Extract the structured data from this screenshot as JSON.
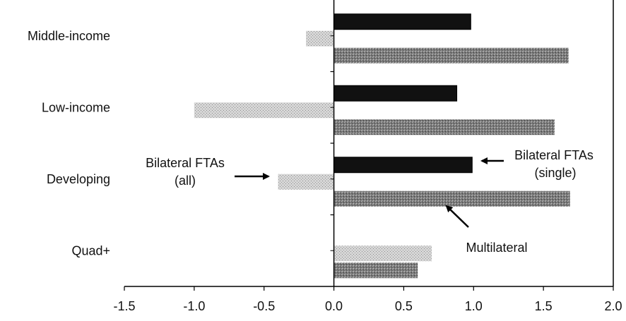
{
  "chart_data": {
    "type": "bar",
    "orientation": "horizontal",
    "categories": [
      "Middle-income",
      "Low-income",
      "Developing",
      "Quad+"
    ],
    "series": [
      {
        "values": [
          0.98,
          0.88,
          0.99,
          null
        ],
        "color": "#111111",
        "pattern": "solid"
      },
      {
        "values": [
          -0.2,
          -1.0,
          -0.4,
          0.7
        ],
        "color": "#c4c4c4",
        "pattern": "light-stipple"
      },
      {
        "values": [
          1.68,
          1.58,
          1.69,
          0.6
        ],
        "color": "#6d6d6d",
        "pattern": "dark-stipple"
      }
    ],
    "xlim": [
      -1.5,
      2.0
    ],
    "xticks": [
      "-1.5",
      "-1.0",
      "-0.5",
      "0.0",
      "0.5",
      "1.0",
      "1.5",
      "2.0"
    ],
    "xtick_values": [
      -1.5,
      -1.0,
      -0.5,
      0.0,
      0.5,
      1.0,
      1.5,
      2.0
    ],
    "grid": false,
    "legend": "none",
    "annotations": [
      {
        "lines": [
          "Bilateral FTAs",
          "(all)"
        ]
      },
      {
        "lines": [
          "Bilateral FTAs",
          "(single)"
        ]
      },
      {
        "lines": [
          "Multilateral"
        ]
      }
    ]
  }
}
